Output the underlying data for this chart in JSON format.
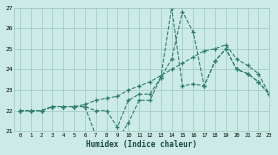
{
  "xlabel": "Humidex (Indice chaleur)",
  "x": [
    0,
    1,
    2,
    3,
    4,
    5,
    6,
    7,
    8,
    9,
    10,
    11,
    12,
    13,
    14,
    15,
    16,
    17,
    18,
    19,
    20,
    21,
    22,
    23
  ],
  "line1": [
    22.0,
    22.0,
    22.0,
    22.2,
    22.2,
    22.2,
    22.2,
    20.8,
    20.6,
    20.6,
    21.4,
    22.5,
    22.5,
    23.6,
    27.0,
    23.2,
    23.3,
    23.2,
    24.4,
    25.0,
    24.0,
    23.8,
    23.4,
    22.8
  ],
  "line2": [
    22.0,
    22.0,
    22.0,
    22.2,
    22.2,
    22.2,
    22.2,
    22.0,
    22.0,
    21.2,
    22.5,
    22.8,
    22.8,
    23.6,
    24.5,
    26.8,
    25.8,
    23.2,
    24.4,
    25.0,
    24.0,
    23.8,
    23.4,
    22.8
  ],
  "line3": [
    22.0,
    22.0,
    22.0,
    22.2,
    22.2,
    22.2,
    22.3,
    22.5,
    22.6,
    22.7,
    23.0,
    23.2,
    23.4,
    23.7,
    24.0,
    24.3,
    24.6,
    24.9,
    25.0,
    25.2,
    24.5,
    24.2,
    23.8,
    22.8
  ],
  "line_color": "#2e7d6e",
  "bg_color": "#cceae6",
  "grid_color": "#9fc8c2",
  "ylim": [
    21,
    27
  ],
  "xlim": [
    -0.5,
    23
  ]
}
